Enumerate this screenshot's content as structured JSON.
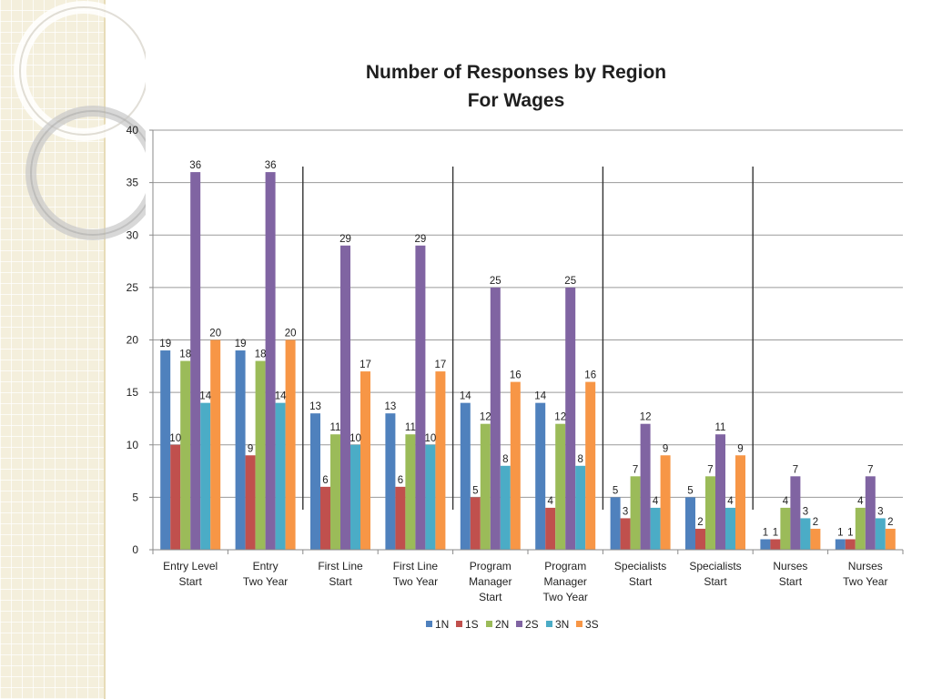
{
  "chart_data": {
    "type": "bar",
    "title": [
      "Number of Responses by Region",
      "For Wages"
    ],
    "xlabel": "",
    "ylabel": "",
    "ylim": [
      0,
      40
    ],
    "yticks": [
      0,
      5,
      10,
      15,
      20,
      25,
      30,
      35,
      40
    ],
    "grid": true,
    "legend_position": "bottom",
    "categories": [
      [
        "Entry Level",
        "Start"
      ],
      [
        "Entry",
        "Two Year"
      ],
      [
        "First Line",
        "Start"
      ],
      [
        "First Line",
        "Two Year"
      ],
      [
        "Program",
        "Manager",
        "Start"
      ],
      [
        "Program",
        "Manager",
        "Two Year"
      ],
      [
        "Specialists",
        "Start"
      ],
      [
        "Specialists",
        "Start"
      ],
      [
        "Nurses",
        "Start"
      ],
      [
        "Nurses",
        "Two Year"
      ]
    ],
    "group_separators_after": [
      1,
      3,
      5,
      7
    ],
    "series": [
      {
        "name": "1N",
        "color": "#4f81bd",
        "values": [
          19,
          19,
          13,
          13,
          14,
          14,
          5,
          5,
          1,
          1
        ]
      },
      {
        "name": "1S",
        "color": "#c0504d",
        "values": [
          10,
          9,
          6,
          6,
          5,
          4,
          3,
          2,
          1,
          1
        ]
      },
      {
        "name": "2N",
        "color": "#9bbb59",
        "values": [
          18,
          18,
          11,
          11,
          12,
          12,
          7,
          7,
          4,
          4
        ]
      },
      {
        "name": "2S",
        "color": "#8064a2",
        "values": [
          36,
          36,
          29,
          29,
          25,
          25,
          12,
          11,
          7,
          7
        ]
      },
      {
        "name": "3N",
        "color": "#4bacc6",
        "values": [
          14,
          14,
          10,
          10,
          8,
          8,
          4,
          4,
          3,
          3
        ]
      },
      {
        "name": "3S",
        "color": "#f79646",
        "values": [
          20,
          20,
          17,
          17,
          16,
          16,
          9,
          9,
          2,
          2
        ]
      }
    ]
  }
}
